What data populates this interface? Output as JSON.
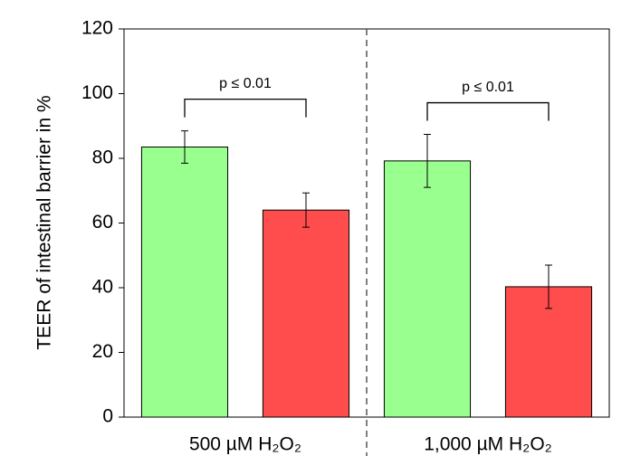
{
  "chart_data": {
    "type": "bar",
    "y_label": "TEER of intestinal barrier in %",
    "categories": [
      "500 µM H₂O₂",
      "1,000 µM H₂O₂"
    ],
    "series": [
      {
        "color": "#99ff8f",
        "values": [
          83.5,
          79.2
        ],
        "errors": [
          5,
          8.2
        ]
      },
      {
        "color": "#ff4d4d",
        "values": [
          64,
          40.3
        ],
        "errors": [
          5.3,
          6.7
        ]
      }
    ],
    "annotations": [
      "p ≤ 0.01",
      "p ≤ 0.01"
    ],
    "ylim": [
      0,
      120
    ],
    "yticks": [
      0,
      20,
      40,
      60,
      80,
      100,
      120
    ]
  }
}
